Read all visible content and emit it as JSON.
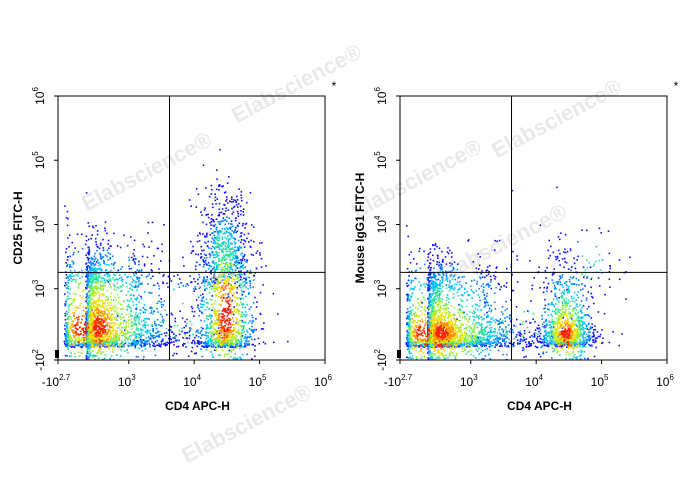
{
  "watermark": {
    "text": "Elabscience",
    "mark": "®"
  },
  "colors": {
    "density": [
      "#1010ff",
      "#0080ff",
      "#00c0ff",
      "#30e0a0",
      "#a0f030",
      "#f0e000",
      "#ff9000",
      "#ff2000"
    ],
    "gate": "#000000",
    "frame": "#000000"
  },
  "chart_data": [
    {
      "type": "scatter",
      "subtype": "flow-cytometry-density-dot-plot",
      "marker": "*",
      "xlabel": "CD4 APC-H",
      "ylabel": "CD25 FITC-H",
      "x_scale": "biexponential",
      "y_scale": "biexponential",
      "xlim": [
        -500,
        1000000
      ],
      "ylim": [
        -100,
        1000000
      ],
      "x_ticks": [
        {
          "base": "-10",
          "exp": "2.7",
          "value": -500
        },
        {
          "base": "10",
          "exp": "3",
          "value": 1000
        },
        {
          "base": "10",
          "exp": "4",
          "value": 10000
        },
        {
          "base": "10",
          "exp": "5",
          "value": 100000
        },
        {
          "base": "10",
          "exp": "6",
          "value": 1000000
        }
      ],
      "y_ticks": [
        {
          "base": "-10",
          "exp": "2",
          "value": -100
        },
        {
          "base": "10",
          "exp": "3",
          "value": 1000
        },
        {
          "base": "10",
          "exp": "4",
          "value": 10000
        },
        {
          "base": "10",
          "exp": "5",
          "value": 100000
        },
        {
          "base": "10",
          "exp": "6",
          "value": 1000000
        }
      ],
      "gate": {
        "x": 4200,
        "y": 1800
      },
      "populations": [
        {
          "cx": 300,
          "cy": 350,
          "sx": 0.55,
          "sy": 0.55,
          "n": 2600
        },
        {
          "cx": 30000,
          "cy": 500,
          "sx": 0.22,
          "sy": 0.75,
          "n": 1300
        },
        {
          "cx": 28000,
          "cy": 4000,
          "sx": 0.2,
          "sy": 0.45,
          "n": 400
        },
        {
          "cx": 5000,
          "cy": 400,
          "sx": 0.6,
          "sy": 0.5,
          "n": 150
        }
      ]
    },
    {
      "type": "scatter",
      "subtype": "flow-cytometry-density-dot-plot",
      "marker": "*",
      "xlabel": "CD4 APC-H",
      "ylabel": "Mouse IgG1 FITC-H",
      "x_scale": "biexponential",
      "y_scale": "biexponential",
      "xlim": [
        -500,
        1000000
      ],
      "ylim": [
        -100,
        1000000
      ],
      "x_ticks": [
        {
          "base": "-10",
          "exp": "2.7",
          "value": -500
        },
        {
          "base": "10",
          "exp": "3",
          "value": 1000
        },
        {
          "base": "10",
          "exp": "4",
          "value": 10000
        },
        {
          "base": "10",
          "exp": "5",
          "value": 100000
        },
        {
          "base": "10",
          "exp": "6",
          "value": 1000000
        }
      ],
      "y_ticks": [
        {
          "base": "-10",
          "exp": "2",
          "value": -100
        },
        {
          "base": "10",
          "exp": "3",
          "value": 1000
        },
        {
          "base": "10",
          "exp": "4",
          "value": 10000
        },
        {
          "base": "10",
          "exp": "5",
          "value": 100000
        },
        {
          "base": "10",
          "exp": "6",
          "value": 1000000
        }
      ],
      "gate": {
        "x": 4200,
        "y": 1800
      },
      "populations": [
        {
          "cx": 300,
          "cy": 250,
          "sx": 0.6,
          "sy": 0.5,
          "n": 2800
        },
        {
          "cx": 28000,
          "cy": 250,
          "sx": 0.2,
          "sy": 0.45,
          "n": 1100
        },
        {
          "cx": 60000,
          "cy": 2500,
          "sx": 0.3,
          "sy": 0.4,
          "n": 60
        },
        {
          "cx": 5000,
          "cy": 300,
          "sx": 0.6,
          "sy": 0.5,
          "n": 120
        }
      ]
    }
  ]
}
